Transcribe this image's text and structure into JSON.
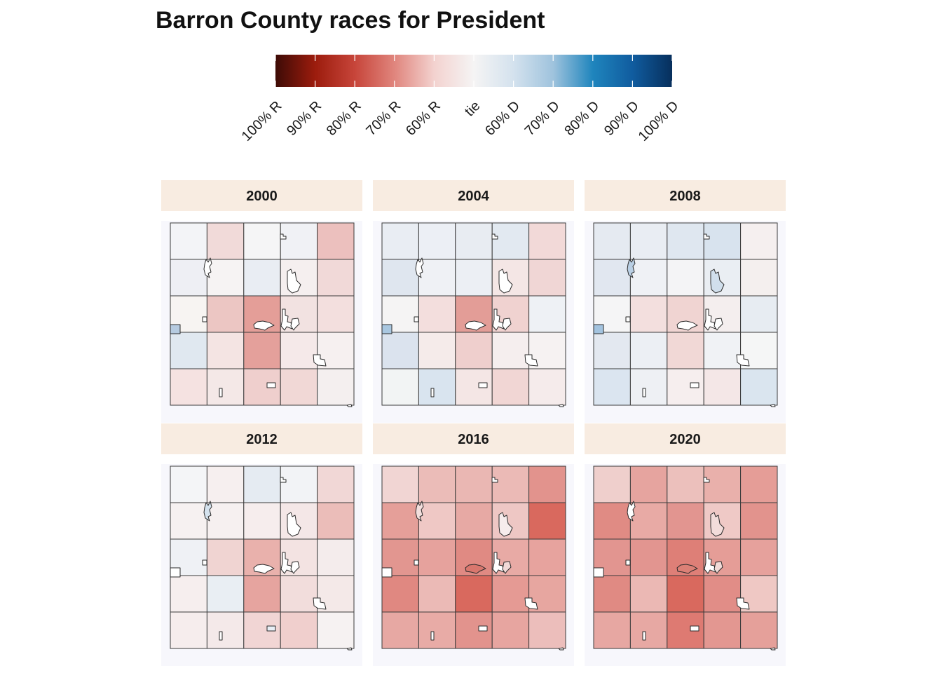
{
  "title": "Barron County races for President",
  "legend": {
    "colors": [
      "#3d0b06",
      "#9c1c0d",
      "#c7453a",
      "#e0857d",
      "#f3d2cf",
      "#f5f4f4",
      "#d4e2ee",
      "#9fc3dd",
      "#1f85bd",
      "#105c9f",
      "#072f5c"
    ],
    "labels": [
      "100% R",
      "90% R",
      "80% R",
      "70% R",
      "60% R",
      "tie",
      "60% D",
      "70% D",
      "80% D",
      "90% D",
      "100% D"
    ]
  },
  "panels": [
    {
      "year": "2000",
      "grid": [
        [
          "#f3f4f7",
          "#f1dad9",
          "#f5f5f6",
          "#f0f1f5",
          "#ecc0be"
        ],
        [
          "#eeeff4",
          "#f6f3f3",
          "#e9edf3",
          "#f5efef",
          "#f1d9d8"
        ],
        [
          "#f7f4f2",
          "#ecc6c3",
          "#e49e98",
          "#f2e2e1",
          "#f3dfde"
        ],
        [
          "#e0e8f0",
          "#f4e4e3",
          "#e4a09b",
          "#f5e9e9",
          "#f6f0f0"
        ],
        [
          "#f5e2e1",
          "#f4e8e7",
          "#efcfcd",
          "#f1d8d6",
          "#f4efef"
        ]
      ],
      "towns": [
        "#ffffff",
        "#ffffff",
        "#ffffff",
        "#ffffff",
        "#ffffff",
        "#ffffff",
        "#ffffff",
        "#ffffff",
        "#ffffff",
        "#b6cbe0"
      ]
    },
    {
      "year": "2004",
      "grid": [
        [
          "#e9edf3",
          "#eceff5",
          "#e8ecf2",
          "#e2e9f1",
          "#f2d9d8"
        ],
        [
          "#dfe6ef",
          "#eff1f5",
          "#eceff4",
          "#f4e6e5",
          "#f0d6d5"
        ],
        [
          "#f5f4f4",
          "#f3dedd",
          "#e39d97",
          "#f0d2d0",
          "#eef1f5"
        ],
        [
          "#dbe3ee",
          "#f5ebea",
          "#efcfcd",
          "#f5eeee",
          "#f6f2f2"
        ],
        [
          "#f2f4f4",
          "#d9e4ef",
          "#f4e6e5",
          "#f1d6d4",
          "#f5ebeb"
        ]
      ],
      "towns": [
        "#ffffff",
        "#ffffff",
        "#ffffff",
        "#ffffff",
        "#ffffff",
        "#ffffff",
        "#ffffff",
        "#ffffff",
        "#ffffff",
        "#a9c7e0"
      ]
    },
    {
      "year": "2008",
      "grid": [
        [
          "#e5eaf1",
          "#e9edf3",
          "#dfe7f0",
          "#d8e3ee",
          "#f5efef"
        ],
        [
          "#e1e7f0",
          "#eff1f5",
          "#f4f4f6",
          "#eaeef3",
          "#f4efee"
        ],
        [
          "#f5f5f6",
          "#f3dfde",
          "#f0d4d2",
          "#f4eeee",
          "#e7ecf2"
        ],
        [
          "#e3e8f0",
          "#eceff4",
          "#f1d8d6",
          "#f0f2f5",
          "#f5f6f6"
        ],
        [
          "#dbe5f0",
          "#eef0f4",
          "#f6eeee",
          "#f4e7e7",
          "#dae5ef"
        ]
      ],
      "towns": [
        "#b9cfe4",
        "#ffffff",
        "#d1dfec",
        "#ffffff",
        "#ffffff",
        "#ffffff",
        "#ffffff",
        "#ffffff",
        "#ffffff",
        "#a3c3df"
      ]
    },
    {
      "year": "2012",
      "grid": [
        [
          "#f4f5f7",
          "#f6efef",
          "#e5ebf2",
          "#f2f3f6",
          "#f1d7d6"
        ],
        [
          "#f6f1f1",
          "#f6f0f0",
          "#f6eded",
          "#f4e7e7",
          "#ebbdb9"
        ],
        [
          "#eff1f5",
          "#f0d4d2",
          "#e9b1ac",
          "#f3e3e2",
          "#f4ecec"
        ],
        [
          "#f6eeee",
          "#e9eef3",
          "#e6a49f",
          "#f2dddc",
          "#f4e9e8"
        ],
        [
          "#f6eded",
          "#f4e9e9",
          "#f1d5d4",
          "#f0cfcd",
          "#f6f2f2"
        ]
      ],
      "towns": [
        "#d4e2ee",
        "#ffffff",
        "#ffffff",
        "#ffffff",
        "#ffffff",
        "#ffffff",
        "#ffffff",
        "#ffffff",
        "#e8eef5",
        "#ffffff"
      ]
    },
    {
      "year": "2016",
      "grid": [
        [
          "#f1d5d3",
          "#ebbcb8",
          "#eab7b3",
          "#ebbab6",
          "#e2938d"
        ],
        [
          "#e59f99",
          "#efc8c5",
          "#e7a9a4",
          "#eec7c4",
          "#d9695e"
        ],
        [
          "#e29690",
          "#e6a29d",
          "#e08a83",
          "#e8aaa5",
          "#e7a39e"
        ],
        [
          "#e08881",
          "#ebbab6",
          "#d9695e",
          "#e59a94",
          "#e7a6a0"
        ],
        [
          "#e7a8a3",
          "#e8aba6",
          "#e2938d",
          "#e7a5a0",
          "#ecbebb"
        ]
      ],
      "towns": [
        "#f3dfdd",
        "#ffffff",
        "#f6ecec",
        "#ffffff",
        "#d9776e",
        "#ffffff",
        "#f2d9d7",
        "#ffffff",
        "#ffffff",
        "#ffffff"
      ]
    },
    {
      "year": "2020",
      "grid": [
        [
          "#efcfcc",
          "#e6a49f",
          "#ecc0bc",
          "#e9b0ab",
          "#e59d97"
        ],
        [
          "#e08b84",
          "#e8aaa5",
          "#e29590",
          "#efc9c6",
          "#e2938d"
        ],
        [
          "#e29590",
          "#e29590",
          "#de7f77",
          "#e59d97",
          "#e6a19c"
        ],
        [
          "#e08a83",
          "#ebb8b4",
          "#d9695e",
          "#e18d87",
          "#efc8c4"
        ],
        [
          "#e7a7a2",
          "#e7a8a3",
          "#de7a72",
          "#e39791",
          "#e5a09a"
        ]
      ],
      "towns": [
        "#ffffff",
        "#ffffff",
        "#f2dcda",
        "#ffffff",
        "#dc8076",
        "#ffffff",
        "#f1dad7",
        "#ffffff",
        "#ffffff",
        "#ffffff"
      ]
    }
  ]
}
